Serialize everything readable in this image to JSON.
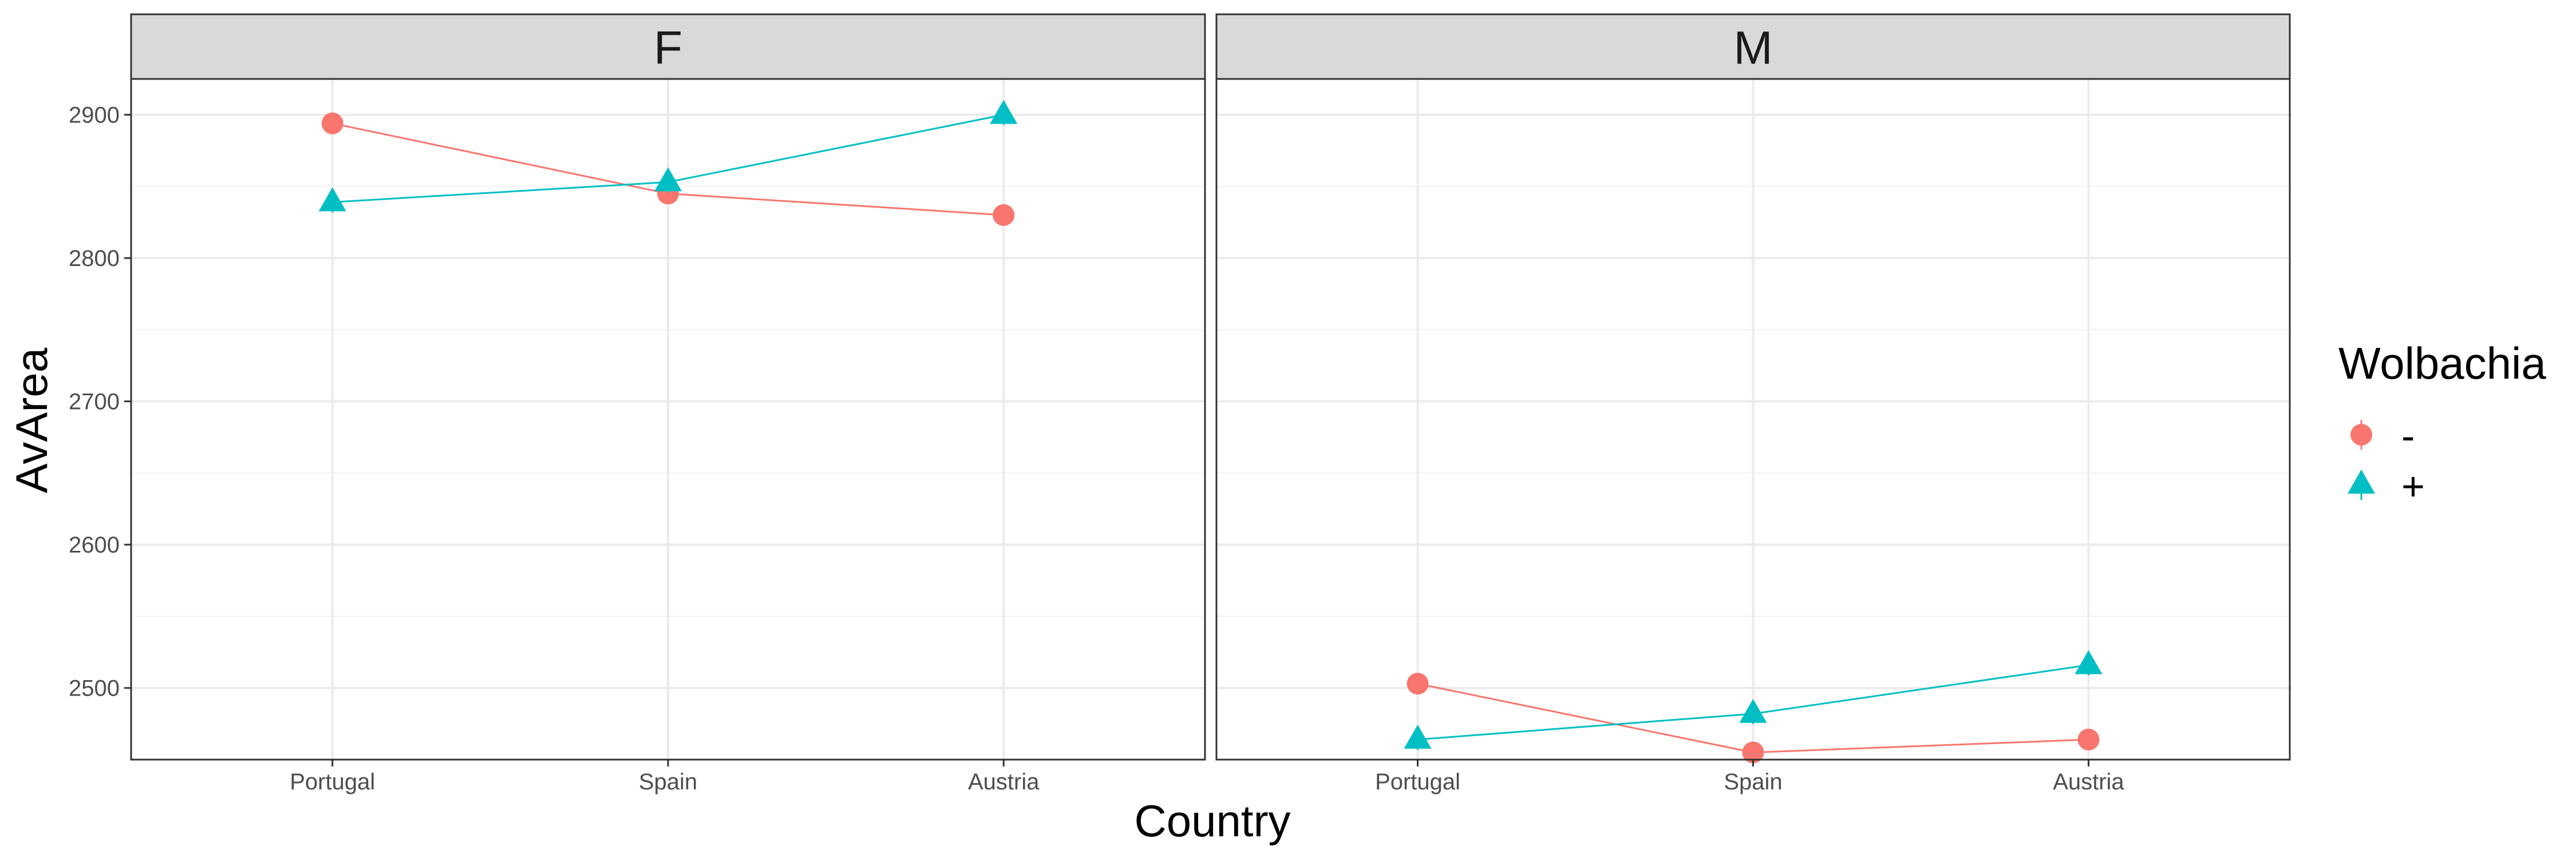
{
  "chart_data": {
    "type": "line",
    "xlabel": "Country",
    "ylabel": "AvArea",
    "categories": [
      "Portugal",
      "Spain",
      "Austria"
    ],
    "ylim": [
      2450,
      2925
    ],
    "y_ticks": [
      2500,
      2600,
      2700,
      2800,
      2900
    ],
    "grid": true,
    "legend": {
      "title": "Wolbachia",
      "placement": "right",
      "entries": [
        {
          "label": "-",
          "color": "#F8766D",
          "shape": "circle"
        },
        {
          "label": "+",
          "color": "#00BFC4",
          "shape": "triangle"
        }
      ]
    },
    "panels": [
      {
        "label": "F",
        "series": [
          {
            "name": "-",
            "color": "#F8766D",
            "shape": "circle",
            "values": [
              2894,
              2845,
              2830
            ]
          },
          {
            "name": "+",
            "color": "#00BFC4",
            "shape": "triangle",
            "values": [
              2839,
              2853,
              2900
            ]
          }
        ]
      },
      {
        "label": "M",
        "series": [
          {
            "name": "-",
            "color": "#F8766D",
            "shape": "circle",
            "values": [
              2503,
              2455,
              2464
            ]
          },
          {
            "name": "+",
            "color": "#00BFC4",
            "shape": "triangle",
            "values": [
              2464,
              2482,
              2516
            ]
          }
        ]
      }
    ]
  }
}
